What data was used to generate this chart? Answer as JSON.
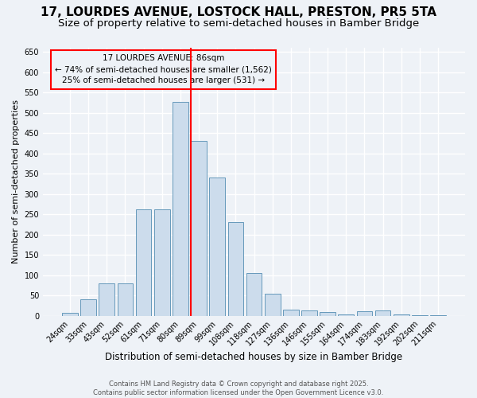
{
  "title1": "17, LOURDES AVENUE, LOSTOCK HALL, PRESTON, PR5 5TA",
  "title2": "Size of property relative to semi-detached houses in Bamber Bridge",
  "xlabel": "Distribution of semi-detached houses by size in Bamber Bridge",
  "ylabel": "Number of semi-detached properties",
  "categories": [
    "24sqm",
    "33sqm",
    "43sqm",
    "52sqm",
    "61sqm",
    "71sqm",
    "80sqm",
    "89sqm",
    "99sqm",
    "108sqm",
    "118sqm",
    "127sqm",
    "136sqm",
    "146sqm",
    "155sqm",
    "164sqm",
    "174sqm",
    "183sqm",
    "192sqm",
    "202sqm",
    "211sqm"
  ],
  "values": [
    7,
    40,
    80,
    80,
    262,
    262,
    527,
    430,
    340,
    230,
    105,
    55,
    16,
    13,
    9,
    4,
    11,
    13,
    4,
    2,
    2
  ],
  "bar_color": "#ccdcec",
  "bar_edge_color": "#6699bb",
  "vline_index": 7,
  "vline_color": "red",
  "annotation_title": "17 LOURDES AVENUE: 86sqm",
  "annotation_line1": "← 74% of semi-detached houses are smaller (1,562)",
  "annotation_line2": "25% of semi-detached houses are larger (531) →",
  "annotation_box_color": "red",
  "ylim": [
    0,
    660
  ],
  "yticks": [
    0,
    50,
    100,
    150,
    200,
    250,
    300,
    350,
    400,
    450,
    500,
    550,
    600,
    650
  ],
  "footer1": "Contains HM Land Registry data © Crown copyright and database right 2025.",
  "footer2": "Contains public sector information licensed under the Open Government Licence v3.0.",
  "bg_color": "#eef2f7",
  "grid_color": "#ffffff",
  "title_fontsize": 11,
  "subtitle_fontsize": 9.5
}
